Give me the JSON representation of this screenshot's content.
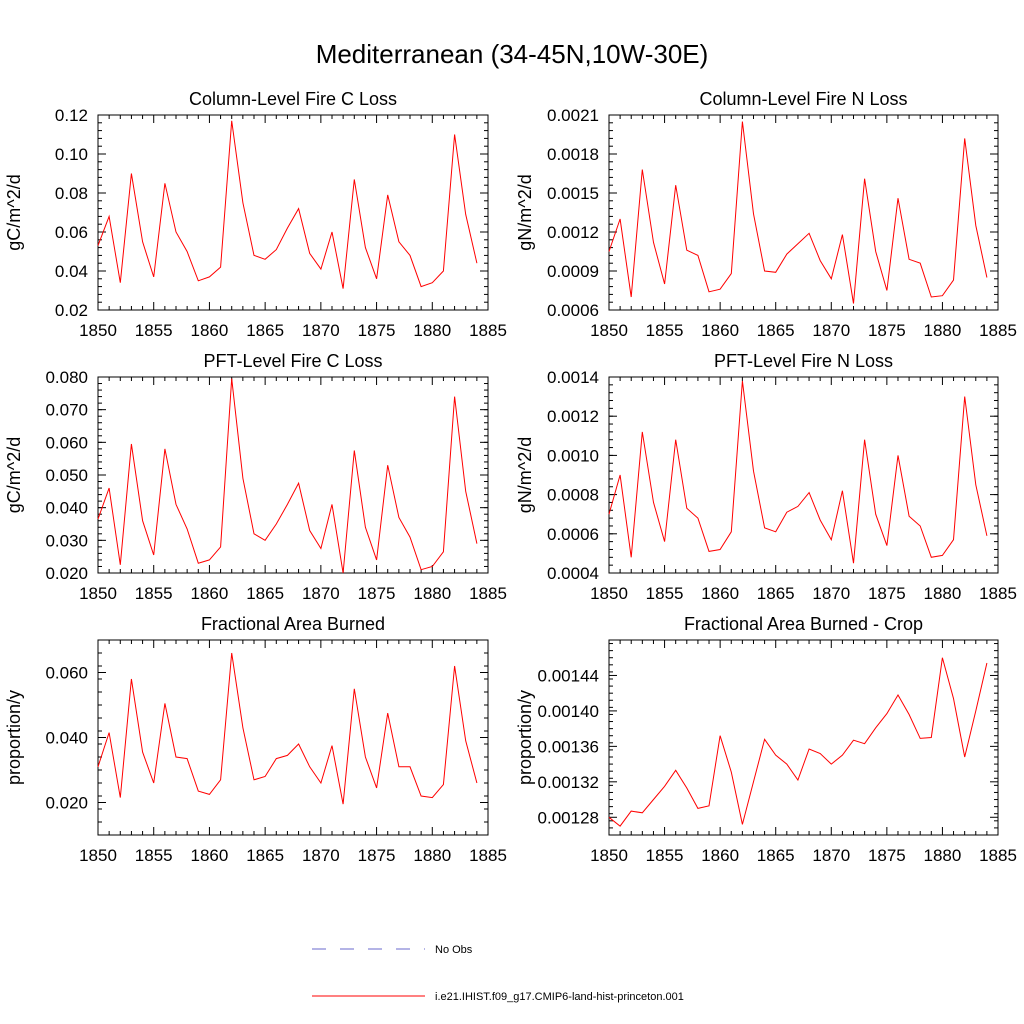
{
  "page": {
    "title": "Mediterranean (34-45N,10W-30E)"
  },
  "legend": {
    "items": [
      {
        "label": "No Obs",
        "color": "#6a6acd",
        "style": "dashed"
      },
      {
        "label": "i.e21.IHIST.f09_g17.CMIP6-land-hist-princeton.001",
        "color": "#ff0000",
        "style": "solid"
      }
    ]
  },
  "chart_data": [
    {
      "type": "line",
      "title": "Column-Level Fire C Loss",
      "ylabel": "gC/m^2/d",
      "xlim": [
        1850,
        1885
      ],
      "ylim": [
        0.02,
        0.12
      ],
      "xticks": [
        1850,
        1855,
        1860,
        1865,
        1870,
        1875,
        1880,
        1885
      ],
      "yticks": [
        0.02,
        0.04,
        0.06,
        0.08,
        0.1,
        0.12
      ],
      "ytick_labels": [
        "0.02",
        "0.04",
        "0.06",
        "0.08",
        "0.10",
        "0.12"
      ],
      "x": [
        1850,
        1851,
        1852,
        1853,
        1854,
        1855,
        1856,
        1857,
        1858,
        1859,
        1860,
        1861,
        1862,
        1863,
        1864,
        1865,
        1866,
        1867,
        1868,
        1869,
        1870,
        1871,
        1872,
        1873,
        1874,
        1875,
        1876,
        1877,
        1878,
        1879,
        1880,
        1881,
        1882,
        1883,
        1884
      ],
      "series": [
        {
          "name": "i.e21.IHIST.f09_g17.CMIP6-land-hist-princeton.001",
          "color": "#ff0000",
          "values": [
            0.053,
            0.068,
            0.034,
            0.09,
            0.055,
            0.037,
            0.085,
            0.06,
            0.05,
            0.035,
            0.037,
            0.042,
            0.117,
            0.075,
            0.048,
            0.046,
            0.051,
            0.062,
            0.072,
            0.049,
            0.041,
            0.06,
            0.031,
            0.087,
            0.052,
            0.036,
            0.079,
            0.055,
            0.048,
            0.032,
            0.034,
            0.04,
            0.11,
            0.069,
            0.044
          ]
        }
      ]
    },
    {
      "type": "line",
      "title": "Column-Level Fire N Loss",
      "ylabel": "gN/m^2/d",
      "xlim": [
        1850,
        1885
      ],
      "ylim": [
        0.0006,
        0.0021
      ],
      "xticks": [
        1850,
        1855,
        1860,
        1865,
        1870,
        1875,
        1880,
        1885
      ],
      "yticks": [
        0.0006,
        0.0009,
        0.0012,
        0.0015,
        0.0018,
        0.0021
      ],
      "ytick_labels": [
        "0.0006",
        "0.0009",
        "0.0012",
        "0.0015",
        "0.0018",
        "0.0021"
      ],
      "x": [
        1850,
        1851,
        1852,
        1853,
        1854,
        1855,
        1856,
        1857,
        1858,
        1859,
        1860,
        1861,
        1862,
        1863,
        1864,
        1865,
        1866,
        1867,
        1868,
        1869,
        1870,
        1871,
        1872,
        1873,
        1874,
        1875,
        1876,
        1877,
        1878,
        1879,
        1880,
        1881,
        1882,
        1883,
        1884
      ],
      "series": [
        {
          "name": "i.e21.IHIST.f09_g17.CMIP6-land-hist-princeton.001",
          "color": "#ff0000",
          "values": [
            0.00105,
            0.0013,
            0.0007,
            0.00168,
            0.00112,
            0.0008,
            0.00156,
            0.00106,
            0.00102,
            0.00074,
            0.00076,
            0.00088,
            0.00205,
            0.00134,
            0.0009,
            0.00089,
            0.00103,
            0.00111,
            0.00119,
            0.00098,
            0.00084,
            0.00118,
            0.00065,
            0.00161,
            0.00105,
            0.00075,
            0.00146,
            0.00099,
            0.00096,
            0.0007,
            0.00071,
            0.00083,
            0.00192,
            0.00125,
            0.00085
          ]
        }
      ]
    },
    {
      "type": "line",
      "title": "PFT-Level Fire C Loss",
      "ylabel": "gC/m^2/d",
      "xlim": [
        1850,
        1885
      ],
      "ylim": [
        0.02,
        0.08
      ],
      "xticks": [
        1850,
        1855,
        1860,
        1865,
        1870,
        1875,
        1880,
        1885
      ],
      "yticks": [
        0.02,
        0.03,
        0.04,
        0.05,
        0.06,
        0.07,
        0.08
      ],
      "ytick_labels": [
        "0.020",
        "0.030",
        "0.040",
        "0.050",
        "0.060",
        "0.070",
        "0.080"
      ],
      "x": [
        1850,
        1851,
        1852,
        1853,
        1854,
        1855,
        1856,
        1857,
        1858,
        1859,
        1860,
        1861,
        1862,
        1863,
        1864,
        1865,
        1866,
        1867,
        1868,
        1869,
        1870,
        1871,
        1872,
        1873,
        1874,
        1875,
        1876,
        1877,
        1878,
        1879,
        1880,
        1881,
        1882,
        1883,
        1884
      ],
      "series": [
        {
          "name": "i.e21.IHIST.f09_g17.CMIP6-land-hist-princeton.001",
          "color": "#ff0000",
          "values": [
            0.0365,
            0.046,
            0.0225,
            0.0595,
            0.036,
            0.0255,
            0.058,
            0.041,
            0.0335,
            0.023,
            0.024,
            0.028,
            0.0795,
            0.049,
            0.032,
            0.03,
            0.035,
            0.041,
            0.0475,
            0.033,
            0.0275,
            0.041,
            0.02,
            0.0575,
            0.034,
            0.024,
            0.053,
            0.037,
            0.031,
            0.021,
            0.022,
            0.0265,
            0.074,
            0.045,
            0.029
          ]
        }
      ]
    },
    {
      "type": "line",
      "title": "PFT-Level Fire N Loss",
      "ylabel": "gN/m^2/d",
      "xlim": [
        1850,
        1885
      ],
      "ylim": [
        0.0004,
        0.0014
      ],
      "xticks": [
        1850,
        1855,
        1860,
        1865,
        1870,
        1875,
        1880,
        1885
      ],
      "yticks": [
        0.0004,
        0.0006,
        0.0008,
        0.001,
        0.0012,
        0.0014
      ],
      "ytick_labels": [
        "0.0004",
        "0.0006",
        "0.0008",
        "0.0010",
        "0.0012",
        "0.0014"
      ],
      "x": [
        1850,
        1851,
        1852,
        1853,
        1854,
        1855,
        1856,
        1857,
        1858,
        1859,
        1860,
        1861,
        1862,
        1863,
        1864,
        1865,
        1866,
        1867,
        1868,
        1869,
        1870,
        1871,
        1872,
        1873,
        1874,
        1875,
        1876,
        1877,
        1878,
        1879,
        1880,
        1881,
        1882,
        1883,
        1884
      ],
      "series": [
        {
          "name": "i.e21.IHIST.f09_g17.CMIP6-land-hist-princeton.001",
          "color": "#ff0000",
          "values": [
            0.0007,
            0.0009,
            0.00048,
            0.00112,
            0.00076,
            0.00056,
            0.00108,
            0.00073,
            0.00068,
            0.00051,
            0.00052,
            0.00061,
            0.00138,
            0.00092,
            0.00063,
            0.00061,
            0.00071,
            0.00074,
            0.00081,
            0.00067,
            0.00057,
            0.00082,
            0.00045,
            0.00108,
            0.0007,
            0.00054,
            0.001,
            0.00069,
            0.00064,
            0.00048,
            0.00049,
            0.00057,
            0.0013,
            0.00085,
            0.00059
          ]
        }
      ]
    },
    {
      "type": "line",
      "title": "Fractional Area Burned",
      "ylabel": "proportion/y",
      "xlim": [
        1850,
        1885
      ],
      "ylim": [
        0.01,
        0.07
      ],
      "xticks": [
        1850,
        1855,
        1860,
        1865,
        1870,
        1875,
        1880,
        1885
      ],
      "yticks": [
        0.02,
        0.04,
        0.06
      ],
      "ytick_labels": [
        "0.020",
        "0.040",
        "0.060"
      ],
      "x": [
        1850,
        1851,
        1852,
        1853,
        1854,
        1855,
        1856,
        1857,
        1858,
        1859,
        1860,
        1861,
        1862,
        1863,
        1864,
        1865,
        1866,
        1867,
        1868,
        1869,
        1870,
        1871,
        1872,
        1873,
        1874,
        1875,
        1876,
        1877,
        1878,
        1879,
        1880,
        1881,
        1882,
        1883,
        1884
      ],
      "series": [
        {
          "name": "i.e21.IHIST.f09_g17.CMIP6-land-hist-princeton.001",
          "color": "#ff0000",
          "values": [
            0.031,
            0.0415,
            0.0215,
            0.058,
            0.0355,
            0.026,
            0.0505,
            0.034,
            0.0335,
            0.0235,
            0.0225,
            0.027,
            0.066,
            0.043,
            0.027,
            0.028,
            0.0335,
            0.0345,
            0.038,
            0.031,
            0.026,
            0.0375,
            0.0195,
            0.055,
            0.034,
            0.0245,
            0.0475,
            0.031,
            0.031,
            0.022,
            0.0215,
            0.0255,
            0.062,
            0.039,
            0.026
          ]
        }
      ]
    },
    {
      "type": "line",
      "title": "Fractional Area Burned - Crop",
      "ylabel": "proportion/y",
      "xlim": [
        1850,
        1885
      ],
      "ylim": [
        0.00126,
        0.00148
      ],
      "xticks": [
        1850,
        1855,
        1860,
        1865,
        1870,
        1875,
        1880,
        1885
      ],
      "yticks": [
        0.00128,
        0.00132,
        0.00136,
        0.0014,
        0.00144
      ],
      "ytick_labels": [
        "0.00128",
        "0.00132",
        "0.00136",
        "0.00140",
        "0.00144"
      ],
      "x": [
        1850,
        1851,
        1852,
        1853,
        1854,
        1855,
        1856,
        1857,
        1858,
        1859,
        1860,
        1861,
        1862,
        1863,
        1864,
        1865,
        1866,
        1867,
        1868,
        1869,
        1870,
        1871,
        1872,
        1873,
        1874,
        1875,
        1876,
        1877,
        1878,
        1879,
        1880,
        1881,
        1882,
        1883,
        1884
      ],
      "series": [
        {
          "name": "i.e21.IHIST.f09_g17.CMIP6-land-hist-princeton.001",
          "color": "#ff0000",
          "values": [
            0.00128,
            0.00127,
            0.001287,
            0.001285,
            0.0013,
            0.001315,
            0.001333,
            0.001313,
            0.00129,
            0.001293,
            0.001372,
            0.001331,
            0.001272,
            0.00132,
            0.001368,
            0.00135,
            0.00134,
            0.001322,
            0.001357,
            0.001352,
            0.00134,
            0.00135,
            0.001367,
            0.001363,
            0.001381,
            0.001397,
            0.001418,
            0.001396,
            0.001369,
            0.00137,
            0.00146,
            0.001414,
            0.001348,
            0.0014,
            0.001454
          ]
        }
      ]
    }
  ]
}
